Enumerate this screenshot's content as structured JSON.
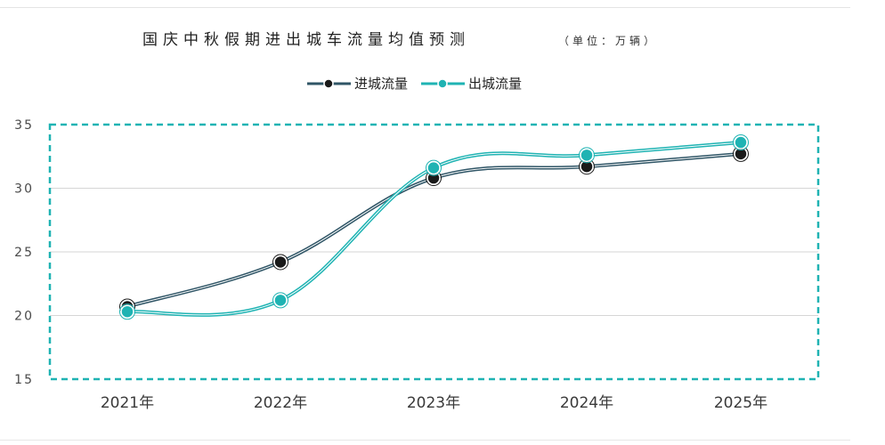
{
  "chart_data": {
    "type": "line",
    "title": "国庆中秋假期进出城车流量均值预测",
    "unit": "（单位：万辆）",
    "categories": [
      "2021年",
      "2022年",
      "2023年",
      "2024年",
      "2025年"
    ],
    "series": [
      {
        "name": "进城流量",
        "values": [
          20.7,
          24.2,
          30.8,
          31.7,
          32.7
        ],
        "color": "#2f5566",
        "markerColor": "#1a1a1a"
      },
      {
        "name": "出城流量",
        "values": [
          20.3,
          21.2,
          31.6,
          32.6,
          33.6
        ],
        "color": "#1fb3b3",
        "markerColor": "#1fb3b3"
      }
    ],
    "ylim": [
      15,
      35
    ],
    "yticks": [
      "15",
      "20",
      "25",
      "30",
      "35"
    ],
    "grid": true,
    "legend": "top-center",
    "frameColor": "#1fb3b3"
  }
}
